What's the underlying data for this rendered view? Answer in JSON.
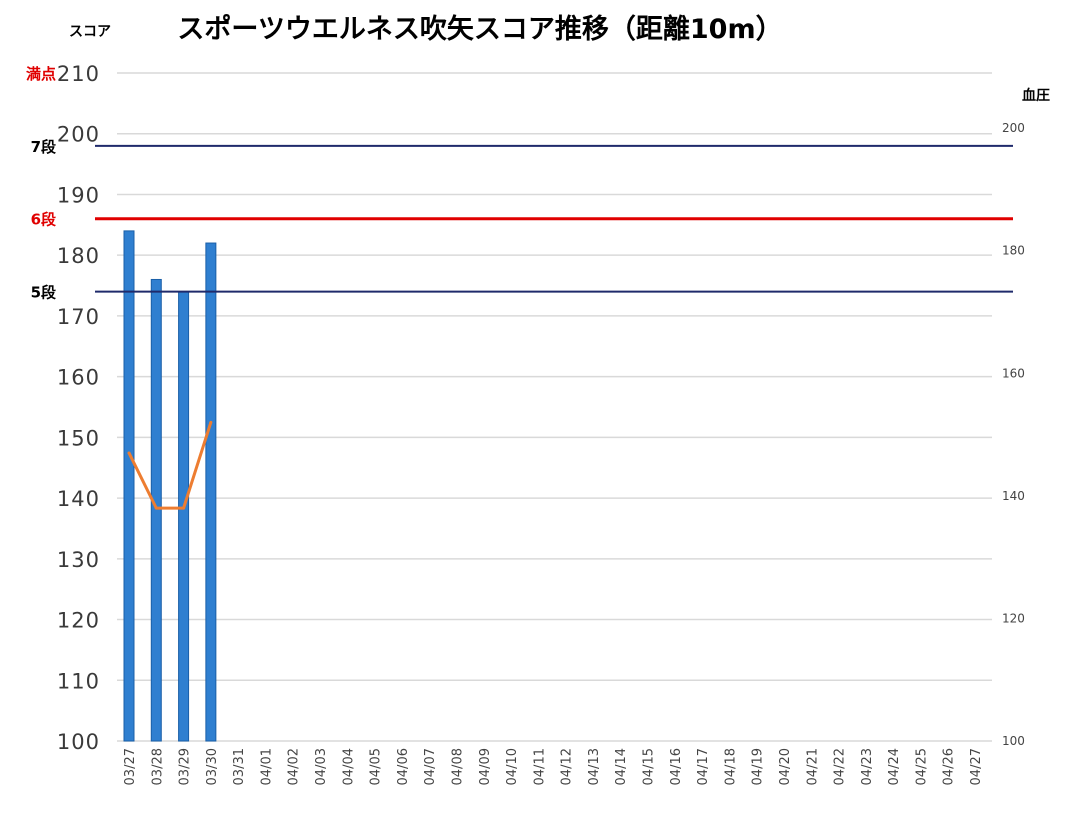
{
  "chart_data": {
    "type": "bar",
    "title": "スポーツウエルネス吹矢スコア推移（距離10m）",
    "ylabel": "スコア",
    "y2label": "血圧",
    "ylim": [
      100,
      210
    ],
    "y_ticks": [
      "100",
      "110",
      "120",
      "130",
      "140",
      "150",
      "160",
      "170",
      "180",
      "190",
      "200",
      "210"
    ],
    "y2lim": [
      100,
      209
    ],
    "y2_ticks": [
      "100",
      "120",
      "140",
      "160",
      "180",
      "200"
    ],
    "categories": [
      "03/27",
      "03/28",
      "03/29",
      "03/30",
      "03/31",
      "04/01",
      "04/02",
      "04/03",
      "04/04",
      "04/05",
      "04/06",
      "04/07",
      "04/08",
      "04/09",
      "04/10",
      "04/11",
      "04/12",
      "04/13",
      "04/14",
      "04/15",
      "04/16",
      "04/17",
      "04/18",
      "04/19",
      "04/20",
      "04/21",
      "04/22",
      "04/23",
      "04/24",
      "04/25",
      "04/26",
      "04/27"
    ],
    "series": [
      {
        "kind": "bar",
        "axis": "left",
        "values": [
          184,
          176,
          174,
          182,
          null,
          null,
          null,
          null,
          null,
          null,
          null,
          null,
          null,
          null,
          null,
          null,
          null,
          null,
          null,
          null,
          null,
          null,
          null,
          null,
          null,
          null,
          null,
          null,
          null,
          null,
          null,
          null
        ]
      },
      {
        "kind": "line",
        "axis": "right",
        "values": [
          147,
          138,
          138,
          152,
          null,
          null,
          null,
          null,
          null,
          null,
          null,
          null,
          null,
          null,
          null,
          null,
          null,
          null,
          null,
          null,
          null,
          null,
          null,
          null,
          null,
          null,
          null,
          null,
          null,
          null,
          null,
          null
        ]
      }
    ],
    "reference_lines": [
      {
        "label": "満点",
        "value": 210,
        "color": "#e00000",
        "line": false
      },
      {
        "label": "7段",
        "value": 198,
        "color": "#000000",
        "line_color": "#1f2a6b",
        "line": true
      },
      {
        "label": "6段",
        "value": 186,
        "color": "#e00000",
        "line_color": "#e00000",
        "line": true
      },
      {
        "label": "5段",
        "value": 174,
        "color": "#000000",
        "line_color": "#1f2a6b",
        "line": true
      }
    ],
    "colors": {
      "bar": "#2f7fd0",
      "bar_edge": "#1a5fa8",
      "line": "#ed7d31",
      "grid": "#d9d9d9"
    },
    "grid": true,
    "legend": "none"
  }
}
